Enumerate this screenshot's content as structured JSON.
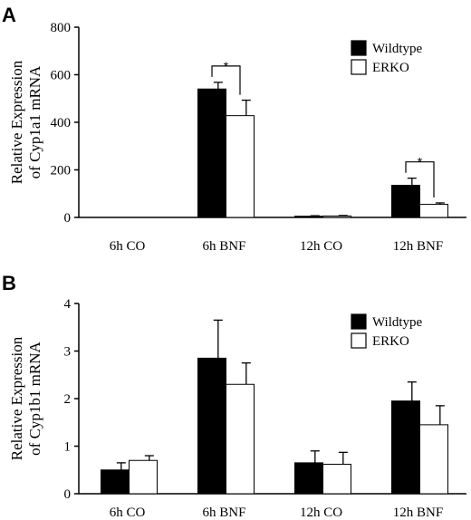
{
  "chart_data": [
    {
      "panel": "A",
      "type": "bar",
      "ylabel": [
        "Relative Expression",
        "of Cyp1a1 mRNA"
      ],
      "ylim": [
        0,
        800
      ],
      "yticks": [
        0,
        200,
        400,
        600,
        800
      ],
      "categories": [
        "6h CO",
        "6h BNF",
        "12h CO",
        "12h BNF"
      ],
      "series": [
        {
          "name": "Wildtype",
          "color": "#000000",
          "values": [
            0,
            540,
            5,
            135
          ],
          "errors": [
            0,
            28,
            2,
            30
          ]
        },
        {
          "name": "ERKO",
          "color": "#ffffff",
          "values": [
            0,
            428,
            6,
            55
          ],
          "errors": [
            0,
            65,
            2,
            6
          ]
        }
      ],
      "annotations": [
        {
          "text": "*",
          "category_index": 1
        },
        {
          "text": "*",
          "category_index": 3
        }
      ],
      "legend": "top-right"
    },
    {
      "panel": "B",
      "type": "bar",
      "ylabel": [
        "Relative Expression",
        "of Cyp1b1 mRNA"
      ],
      "ylim": [
        0,
        4
      ],
      "yticks": [
        0,
        1,
        2,
        3,
        4
      ],
      "categories": [
        "6h CO",
        "6h BNF",
        "12h CO",
        "12h BNF"
      ],
      "series": [
        {
          "name": "Wildtype",
          "color": "#000000",
          "values": [
            0.5,
            2.85,
            0.65,
            1.95
          ],
          "errors": [
            0.15,
            0.8,
            0.25,
            0.4
          ]
        },
        {
          "name": "ERKO",
          "color": "#ffffff",
          "values": [
            0.7,
            2.3,
            0.62,
            1.45
          ],
          "errors": [
            0.1,
            0.45,
            0.25,
            0.4
          ]
        }
      ],
      "annotations": [],
      "legend": "top-right"
    }
  ]
}
